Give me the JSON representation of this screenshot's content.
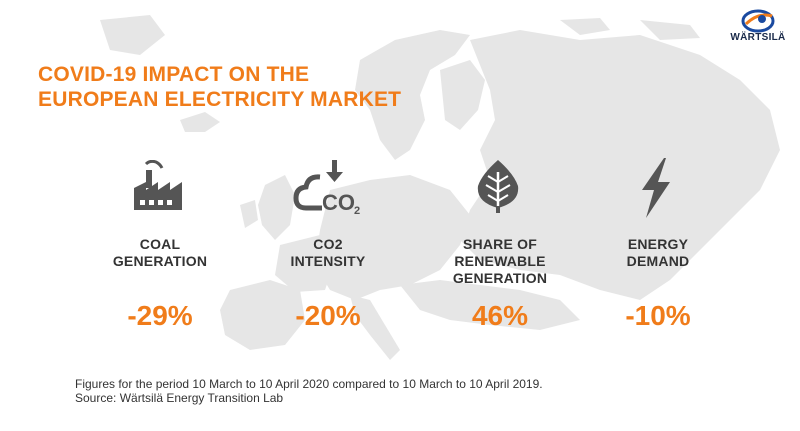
{
  "brand": {
    "logo_text": "WÄRTSILÄ",
    "accent_color": "#f07c1a",
    "text_color": "#333333",
    "map_color": "#e8e8e8"
  },
  "title": {
    "line1": "COVID-19 IMPACT ON THE",
    "line2": "EUROPEAN ELECTRICITY MARKET"
  },
  "metrics": [
    {
      "icon": "factory-icon",
      "label_lines": [
        "COAL",
        "GENERATION"
      ],
      "value": "-29%"
    },
    {
      "icon": "co2-cloud-icon",
      "label_lines": [
        "CO2",
        "INTENSITY"
      ],
      "value": "-20%"
    },
    {
      "icon": "leaf-icon",
      "label_lines": [
        "SHARE OF",
        "RENEWABLE",
        "GENERATION"
      ],
      "value": "46%"
    },
    {
      "icon": "lightning-icon",
      "label_lines": [
        "ENERGY",
        "DEMAND"
      ],
      "value": "-10%"
    }
  ],
  "footnote": {
    "line1": "Figures for the period 10 March to 10 April 2020 compared to 10 March to 10 April 2019.",
    "line2": "Source: Wärtsilä Energy Transition Lab"
  }
}
